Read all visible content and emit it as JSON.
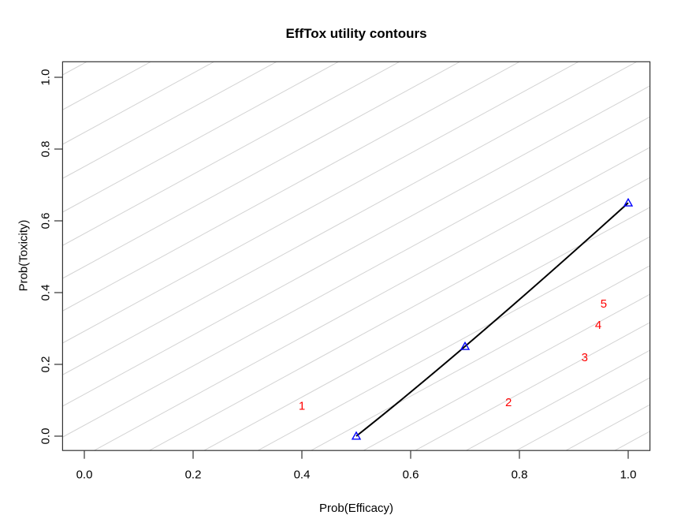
{
  "chart_data": {
    "type": "line",
    "title": "EffTox utility contours",
    "xlabel": "Prob(Efficacy)",
    "ylabel": "Prob(Toxicity)",
    "xlim": [
      0.0,
      1.0
    ],
    "ylim": [
      0.0,
      1.0
    ],
    "grid": "off",
    "legend": "none",
    "x_ticks": {
      "values": [
        0.0,
        0.2,
        0.4,
        0.6,
        0.8,
        1.0
      ],
      "labels": [
        "0.0",
        "0.2",
        "0.4",
        "0.6",
        "0.8",
        "1.0"
      ]
    },
    "y_ticks": {
      "values": [
        0.0,
        0.2,
        0.4,
        0.6,
        0.8,
        1.0
      ],
      "labels": [
        "0.0",
        "0.2",
        "0.4",
        "0.6",
        "0.8",
        "1.0"
      ]
    },
    "tradeoff_contour": {
      "name": "neutral-utility trade-off contour",
      "points": [
        [
          0.5,
          0.0
        ],
        [
          0.7,
          0.25
        ],
        [
          1.0,
          0.65
        ]
      ],
      "marker": "open-triangle"
    },
    "dose_labels": [
      {
        "label": "1",
        "prob_eff": 0.4,
        "prob_tox": 0.085
      },
      {
        "label": "2",
        "prob_eff": 0.78,
        "prob_tox": 0.095
      },
      {
        "label": "3",
        "prob_eff": 0.92,
        "prob_tox": 0.22
      },
      {
        "label": "4",
        "prob_eff": 0.945,
        "prob_tox": 0.31
      },
      {
        "label": "5",
        "prob_eff": 0.955,
        "prob_tox": 0.37
      }
    ],
    "background_contours": {
      "style": "thin diagonal utility contour lines",
      "count": 23
    },
    "colors": {
      "frame": "#333333",
      "contour_lines": "#d3d3d3",
      "tradeoff_line": "#000000",
      "markers": "#0000ff",
      "dose_labels": "#ff0000",
      "text": "#000000"
    }
  }
}
